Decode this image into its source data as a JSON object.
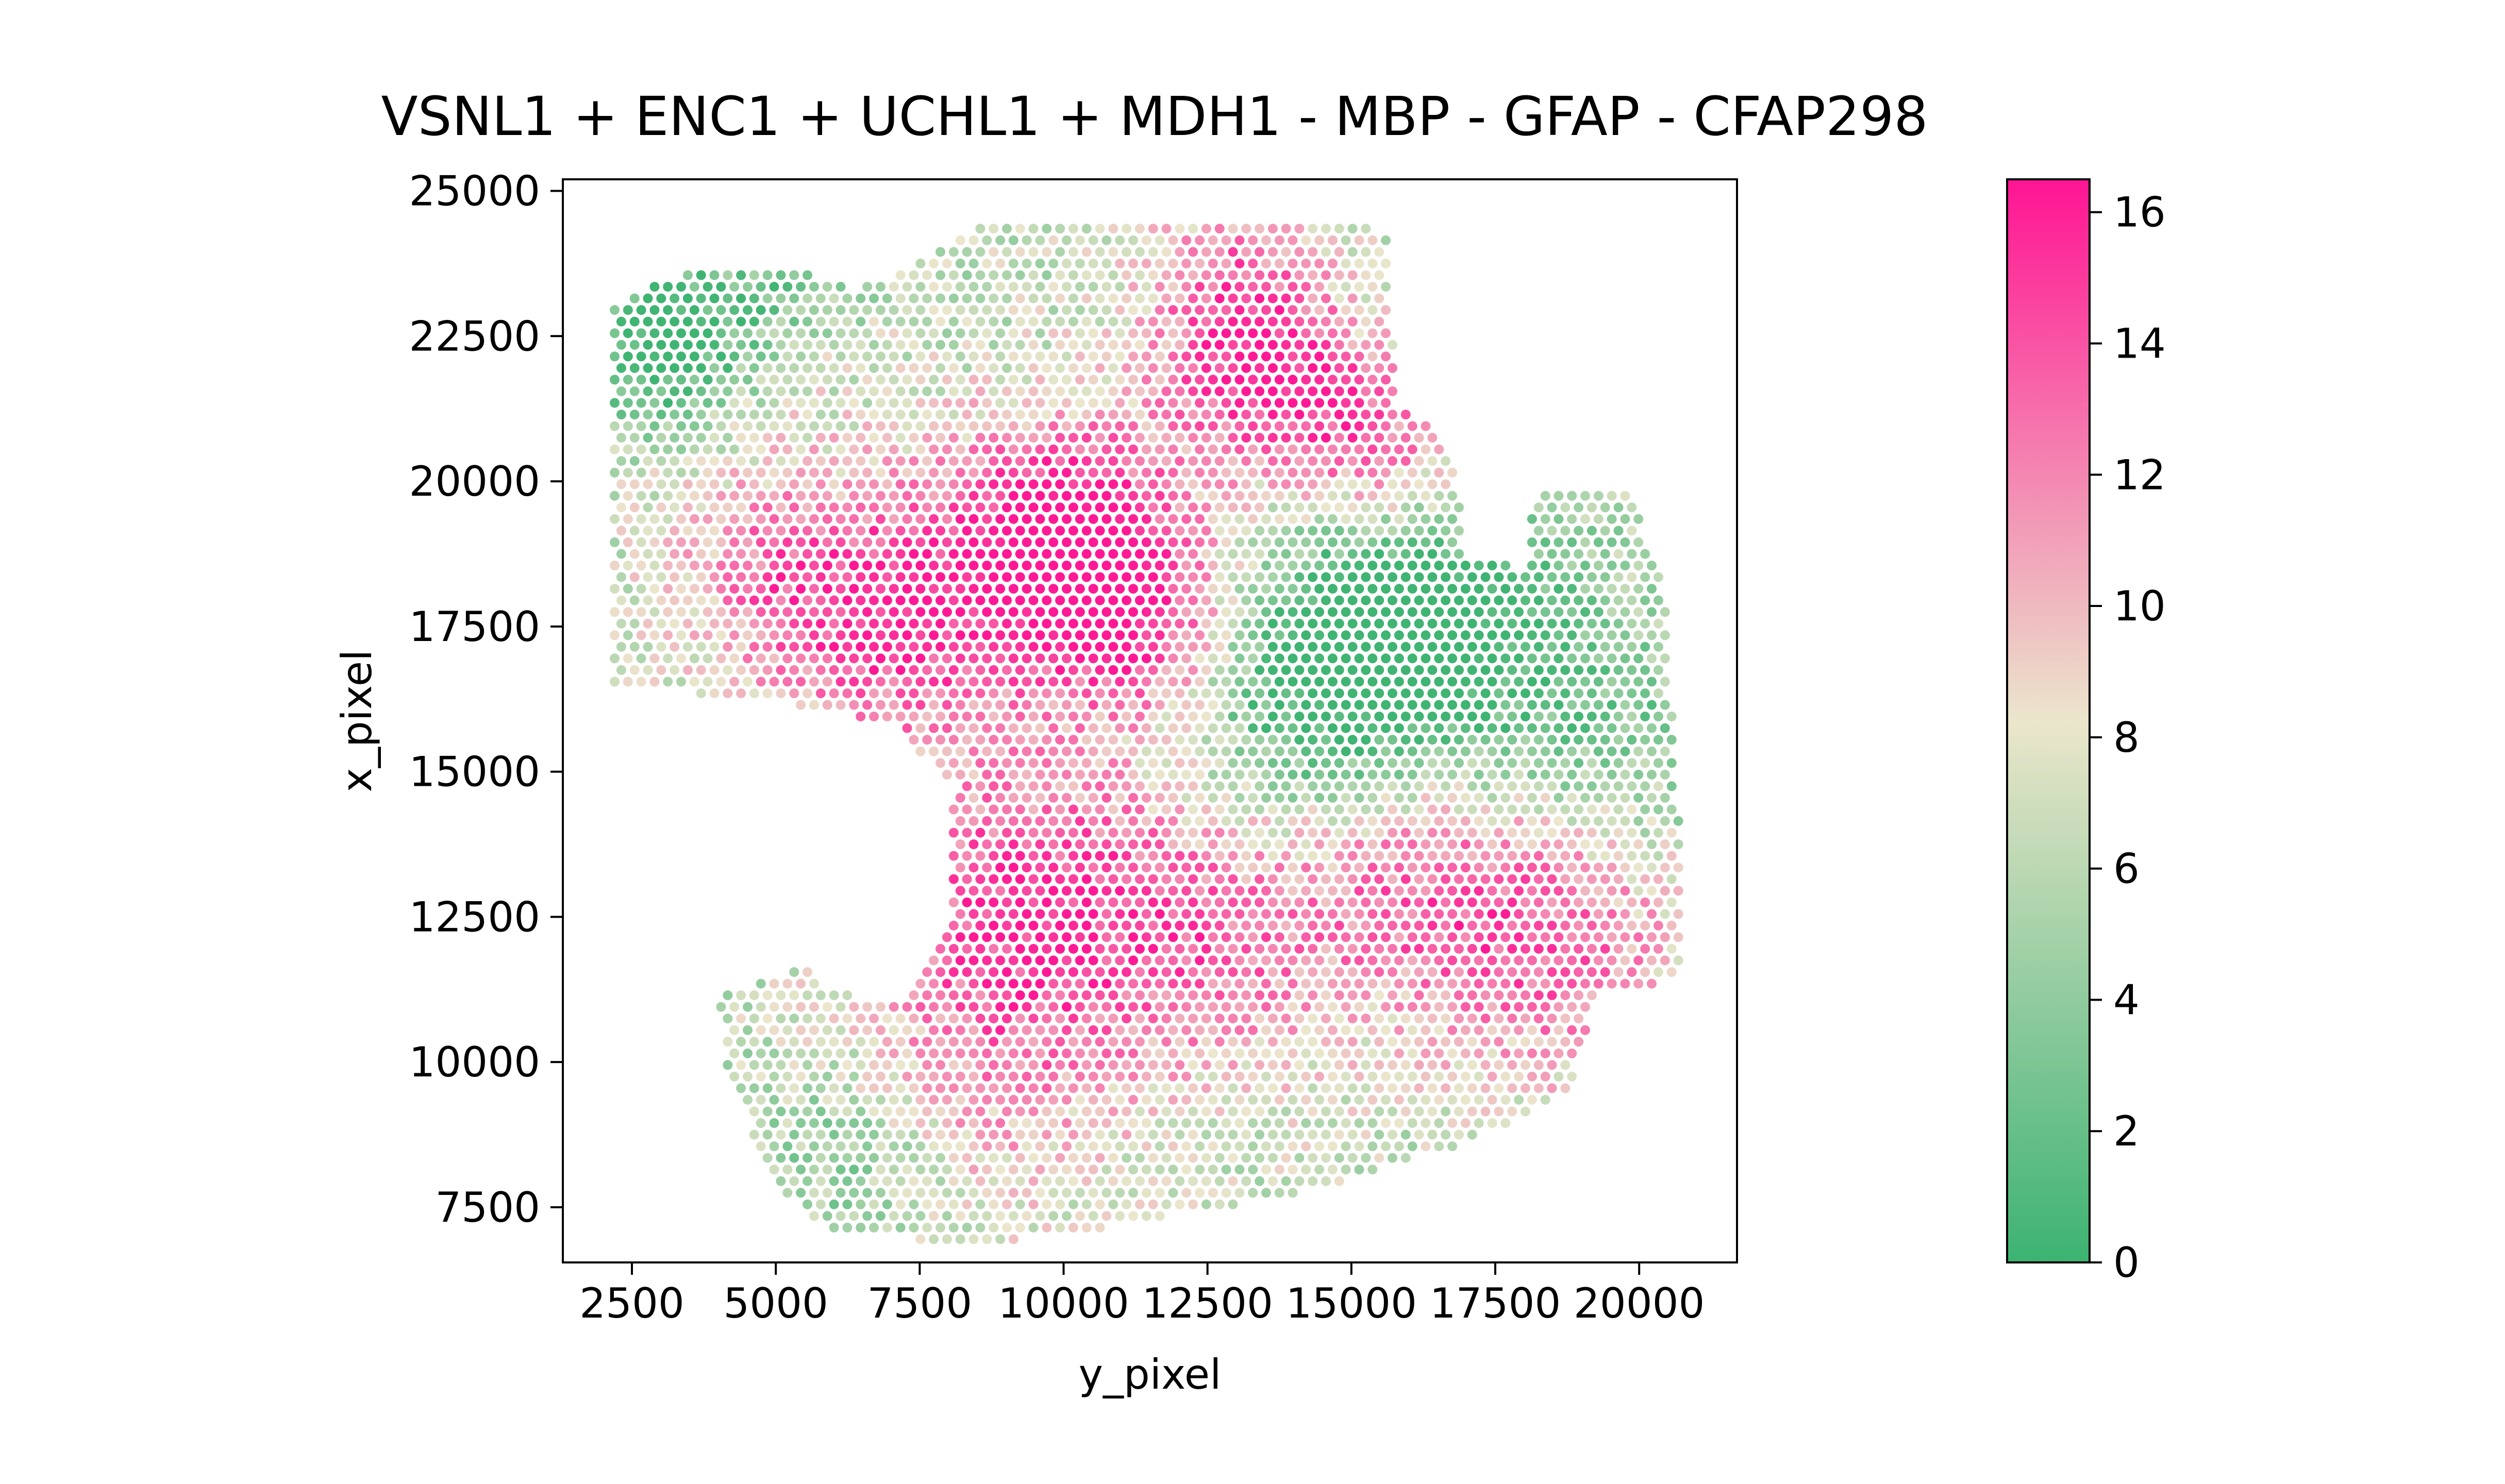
{
  "chart_data": {
    "type": "scatter",
    "title": "VSNL1 + ENC1 + UCHL1 + MDH1 - MBP - GFAP - CFAP298",
    "xlabel": "y_pixel",
    "ylabel": "x_pixel",
    "xlim": [
      1300,
      21700
    ],
    "ylim": [
      25200,
      6550
    ],
    "y_axis_inverted": true,
    "xticks": [
      2500,
      5000,
      7500,
      10000,
      12500,
      15000,
      17500,
      20000
    ],
    "yticks": [
      7500,
      10000,
      12500,
      15000,
      17500,
      20000,
      22500,
      25000
    ],
    "grid": false,
    "colorbar": {
      "min": 0,
      "max": 16.5,
      "ticks": [
        0,
        2,
        4,
        6,
        8,
        10,
        12,
        14,
        16
      ],
      "colors": [
        "#3cb371",
        "#ebe6cc",
        "#ff1493"
      ]
    },
    "spot_grid": {
      "row_spacing": 200,
      "col_spacing": 231,
      "x_start": 2200,
      "x_end": 20700,
      "y_start": 6950,
      "y_end": 24500
    },
    "tissue_outline": [
      [
        2200,
        16500
      ],
      [
        5000,
        16200
      ],
      [
        7000,
        15800
      ],
      [
        8100,
        14800
      ],
      [
        8000,
        12400
      ],
      [
        7200,
        11000
      ],
      [
        6000,
        11200
      ],
      [
        5500,
        11600
      ],
      [
        4000,
        11200
      ],
      [
        4100,
        10000
      ],
      [
        4900,
        8000
      ],
      [
        6000,
        7000
      ],
      [
        8800,
        6900
      ],
      [
        11000,
        7200
      ],
      [
        14000,
        7700
      ],
      [
        17000,
        8600
      ],
      [
        18800,
        9500
      ],
      [
        19300,
        11200
      ],
      [
        20700,
        11400
      ],
      [
        20700,
        14000
      ],
      [
        20500,
        17300
      ],
      [
        20600,
        17700
      ],
      [
        19800,
        19900
      ],
      [
        18200,
        19800
      ],
      [
        18000,
        18500
      ],
      [
        17000,
        18700
      ],
      [
        16900,
        19800
      ],
      [
        16400,
        21100
      ],
      [
        15800,
        21200
      ],
      [
        15700,
        22700
      ],
      [
        15600,
        24300
      ],
      [
        14800,
        24500
      ],
      [
        8600,
        24500
      ],
      [
        6500,
        23300
      ],
      [
        5500,
        23600
      ],
      [
        3500,
        23600
      ],
      [
        2200,
        23100
      ]
    ],
    "hotspots": [
      [
        10000,
        19000,
        11.0,
        2200
      ],
      [
        11500,
        17500,
        8.0,
        1800
      ],
      [
        13500,
        21800,
        9.0,
        1700
      ],
      [
        9000,
        12800,
        7.0,
        2600
      ],
      [
        12500,
        12500,
        7.0,
        2800
      ],
      [
        16000,
        13500,
        6.0,
        2200
      ],
      [
        18500,
        12000,
        7.0,
        2400
      ],
      [
        7000,
        17500,
        7.0,
        2200
      ],
      [
        5000,
        18500,
        5.0,
        2000
      ],
      [
        15500,
        20500,
        7.0,
        1600
      ],
      [
        12800,
        23600,
        5.0,
        1600
      ],
      [
        8500,
        9500,
        4.0,
        2400
      ],
      [
        4500,
        23000,
        3.0,
        2000
      ]
    ],
    "coldspots": [
      [
        14500,
        16200,
        8.0,
        3000
      ],
      [
        16500,
        17800,
        5.0,
        2200
      ],
      [
        3200,
        22500,
        9.0,
        1500
      ],
      [
        5200,
        23500,
        5.0,
        1300
      ],
      [
        6500,
        8500,
        3.0,
        1800
      ],
      [
        19500,
        15500,
        3.0,
        2200
      ]
    ]
  }
}
